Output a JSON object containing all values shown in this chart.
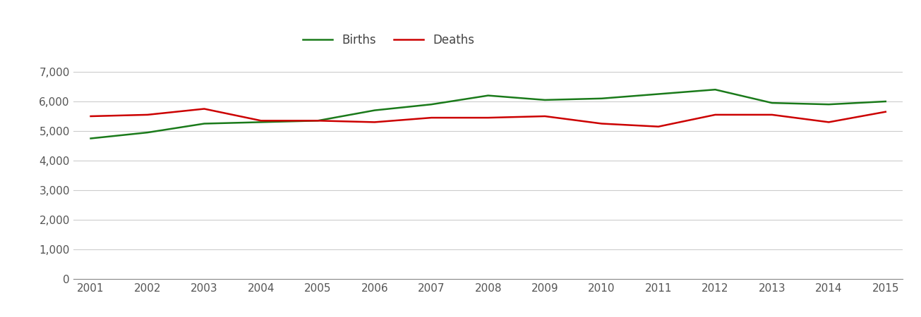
{
  "years": [
    2001,
    2002,
    2003,
    2004,
    2005,
    2006,
    2007,
    2008,
    2009,
    2010,
    2011,
    2012,
    2013,
    2014,
    2015
  ],
  "births": [
    4750,
    4950,
    5250,
    5300,
    5350,
    5700,
    5900,
    6200,
    6050,
    6100,
    6250,
    6400,
    5950,
    5900,
    6000
  ],
  "deaths": [
    5500,
    5550,
    5750,
    5350,
    5350,
    5300,
    5450,
    5450,
    5500,
    5250,
    5150,
    5550,
    5550,
    5300,
    5650
  ],
  "births_color": "#1a7a1a",
  "deaths_color": "#cc0000",
  "background_color": "#ffffff",
  "grid_color": "#cccccc",
  "ylim": [
    0,
    7500
  ],
  "yticks": [
    0,
    1000,
    2000,
    3000,
    4000,
    5000,
    6000,
    7000
  ],
  "ytick_labels": [
    "0",
    "1,000",
    "2,000",
    "3,000",
    "4,000",
    "5,000",
    "6,000",
    "7,000"
  ],
  "legend_births": "Births",
  "legend_deaths": "Deaths",
  "line_width": 1.8
}
